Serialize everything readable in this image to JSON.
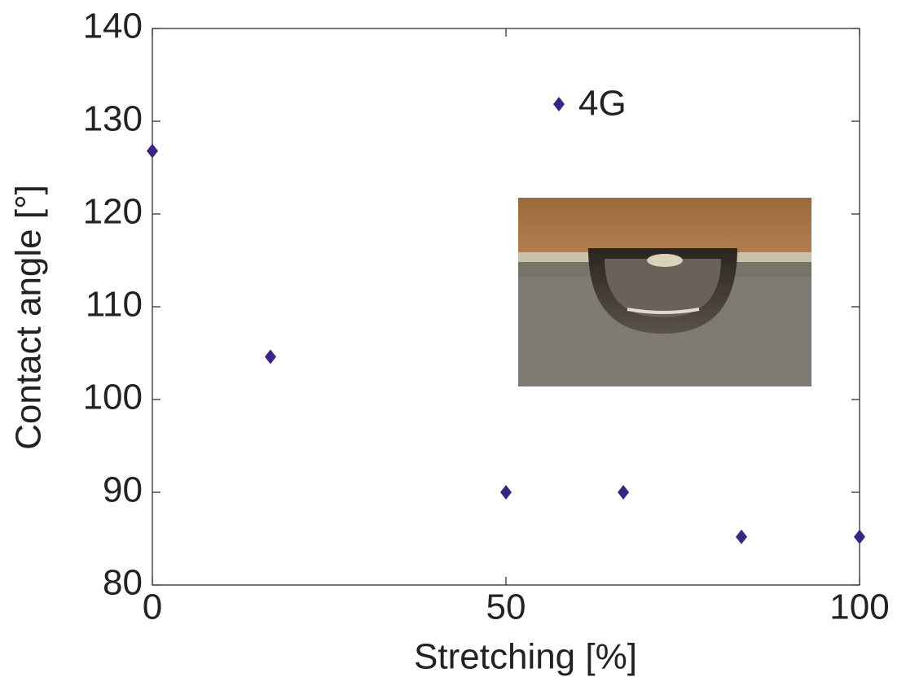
{
  "chart_data": {
    "type": "scatter",
    "x_label": "Stretching [%]",
    "y_label": "Contact angle [°]",
    "xlim": [
      0,
      100
    ],
    "xticks": [
      0,
      50,
      100
    ],
    "ylim": [
      80,
      140
    ],
    "yticks": [
      80,
      90,
      100,
      110,
      120,
      130,
      140
    ],
    "legend": "upper center",
    "series": [
      {
        "name": "4G",
        "color": "#3a2583",
        "x": [
          0,
          16.7,
          50,
          66.6,
          83.3,
          100
        ],
        "values": [
          126.8,
          104.6,
          90,
          90,
          85.2,
          85.2
        ]
      }
    ]
  }
}
